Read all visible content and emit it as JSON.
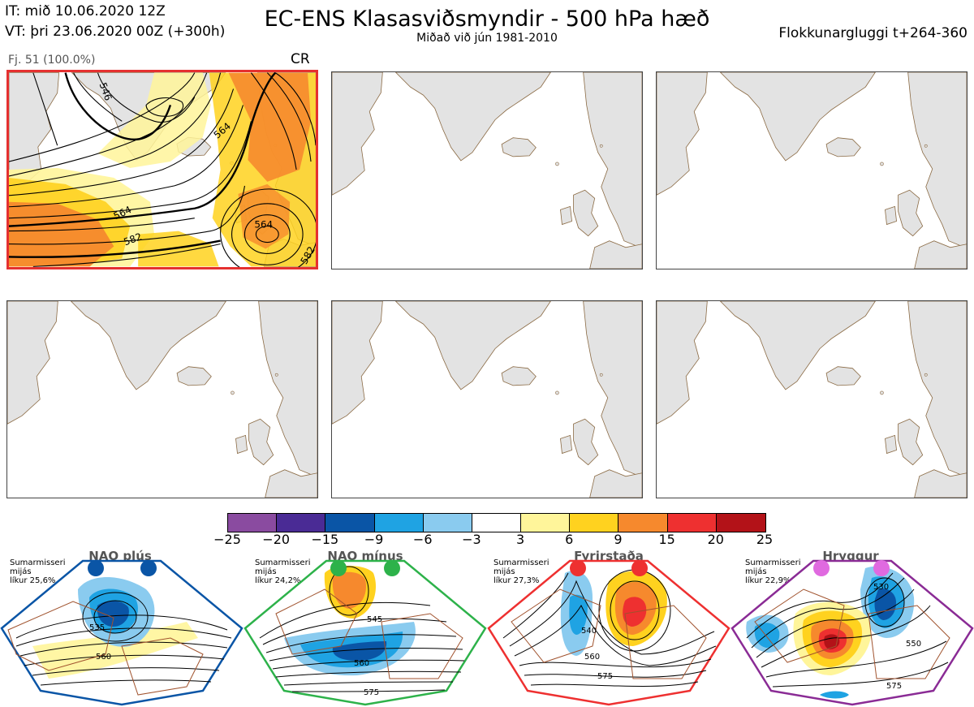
{
  "header": {
    "it_line": "IT: mið 10.06.2020 12Z",
    "vt_line": "VT: þri 23.06.2020 00Z  (+300h)",
    "title": "EC-ENS Klasasviðsmyndir - 500 hPa hæð",
    "subtitle": "Miðað við jún 1981-2010",
    "window": "Flokkunargluggi t+264-360"
  },
  "main_panel": {
    "label": "Fj. 51 (100.0%)",
    "regime_code": "CR",
    "contour_labels": [
      "564",
      "564",
      "564",
      "582",
      "546",
      "582"
    ]
  },
  "colorbar": {
    "ticks": [
      "−25",
      "−20",
      "−15",
      "−9",
      "−6",
      "−3",
      "3",
      "6",
      "9",
      "15",
      "20",
      "25"
    ],
    "colors": [
      "#8a4ba0",
      "#4a2b95",
      "#0a55a6",
      "#1fa3e3",
      "#8acbef",
      "#ffffff",
      "#fff59a",
      "#ffd21f",
      "#f6892d",
      "#ee3030",
      "#b31218"
    ]
  },
  "regimes": [
    {
      "title": "NAO plús",
      "note": [
        "Sumarmisseri",
        "mijás",
        "líkur 25,6%"
      ],
      "dot_color": "#0a55a6",
      "frame_color": "#0a55a6",
      "labels": [
        "535",
        "560"
      ]
    },
    {
      "title": "NAO mínus",
      "note": [
        "Sumarmisseri",
        "mijás",
        "líkur 24,2%"
      ],
      "dot_color": "#2db24a",
      "frame_color": "#2db24a",
      "labels": [
        "545",
        "560",
        "575"
      ]
    },
    {
      "title": "Fyrirstaða",
      "note": [
        "Sumarmisseri",
        "mijás",
        "líkur 27,3%"
      ],
      "dot_color": "#ee3030",
      "frame_color": "#ee3030",
      "labels": [
        "540",
        "560",
        "575"
      ]
    },
    {
      "title": "Hryggur",
      "note": [
        "Sumarmisseri",
        "mijás",
        "líkur 22,9%"
      ],
      "dot_color": "#e06ae0",
      "frame_color": "#8a2b95",
      "labels": [
        "530",
        "550",
        "575"
      ]
    }
  ]
}
